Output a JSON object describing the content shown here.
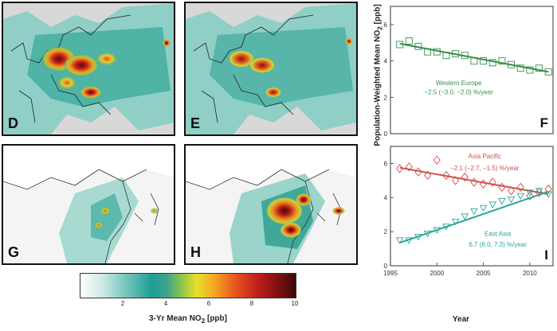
{
  "maps": {
    "panels": [
      {
        "id": "D",
        "label": "D"
      },
      {
        "id": "E",
        "label": "E"
      },
      {
        "id": "G",
        "label": "G"
      },
      {
        "id": "H",
        "label": "H"
      }
    ]
  },
  "colorbar": {
    "label_prefix": "3-Yr Mean NO",
    "label_sub": "2",
    "label_suffix": " [ppb]",
    "ticks": [
      "2",
      "4",
      "6",
      "8",
      "10"
    ],
    "tick_values": [
      2,
      4,
      6,
      8,
      10
    ],
    "range": [
      0,
      10
    ]
  },
  "colors": {
    "western_europe": "#3a8f4a",
    "asia_pacific": "#d0504a",
    "east_asia": "#2aa59a"
  },
  "shared_labels": {
    "ylabel_prefix": "Population-Weighted Mean NO",
    "ylabel_sub": "2",
    "ylabel_suffix": " [ppb]",
    "xlabel": "Year"
  },
  "chart_data": [
    {
      "type": "line",
      "panel_label": "F",
      "ylim": [
        0,
        7
      ],
      "yticks": [
        "0",
        "2",
        "4",
        "6"
      ],
      "xlim": [
        1995,
        2012.5
      ],
      "marker": "square",
      "series": [
        {
          "name": "Western Europe",
          "trend_text": "−2.5 (−3.0, −2.0) %/year",
          "x": [
            1996,
            1997,
            1998,
            1999,
            2000,
            2001,
            2002,
            2003,
            2004,
            2005,
            2006,
            2007,
            2008,
            2009,
            2010,
            2011,
            2012
          ],
          "y": [
            4.9,
            5.1,
            4.8,
            4.5,
            4.5,
            4.3,
            4.4,
            4.3,
            4.0,
            4.0,
            3.9,
            4.0,
            3.8,
            3.6,
            3.5,
            3.6,
            3.4
          ],
          "trend": [
            [
              1996,
              4.95
            ],
            [
              2012,
              3.4
            ]
          ]
        }
      ]
    },
    {
      "type": "line",
      "panel_label": "I",
      "ylim": [
        0,
        7
      ],
      "yticks": [
        "0",
        "2",
        "4",
        "6"
      ],
      "xlim": [
        1995,
        2012.5
      ],
      "xticks": [
        "1995",
        "2000",
        "2005",
        "2010"
      ],
      "xtick_values": [
        1995,
        2000,
        2005,
        2010
      ],
      "series": [
        {
          "name": "Asia Pacific",
          "marker": "diamond",
          "trend_text": "−2.1 (−2.7, −1.5) %/year",
          "x": [
            1996,
            1997,
            1998,
            1999,
            2000,
            2001,
            2002,
            2003,
            2004,
            2005,
            2006,
            2007,
            2008,
            2009,
            2010,
            2011,
            2012
          ],
          "y": [
            5.7,
            5.8,
            5.5,
            5.3,
            6.2,
            5.3,
            5.0,
            5.2,
            4.9,
            4.8,
            4.9,
            4.6,
            4.4,
            4.6,
            4.1,
            4.3,
            4.5
          ],
          "trend": [
            [
              1996,
              5.75
            ],
            [
              2012,
              4.2
            ]
          ]
        },
        {
          "name": "East Asia",
          "marker": "triangle-down",
          "trend_text": "6.7 (6.0, 7.3) %/year",
          "x": [
            1996,
            1997,
            1998,
            1999,
            2000,
            2001,
            2002,
            2003,
            2004,
            2005,
            2006,
            2007,
            2008,
            2009,
            2010,
            2011,
            2012
          ],
          "y": [
            1.5,
            1.5,
            1.7,
            1.9,
            2.1,
            2.3,
            2.6,
            2.9,
            3.2,
            3.4,
            3.6,
            3.8,
            3.9,
            4.1,
            4.3,
            4.4,
            4.2
          ],
          "trend": [
            [
              1996,
              1.35
            ],
            [
              2012,
              4.35
            ]
          ]
        }
      ]
    }
  ]
}
